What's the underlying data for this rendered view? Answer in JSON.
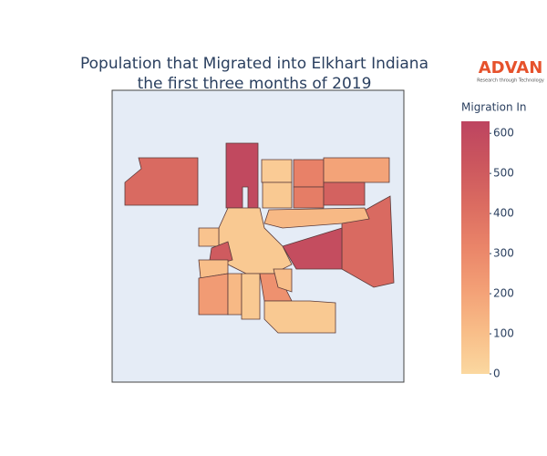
{
  "chart_data": {
    "type": "choropleth",
    "title": [
      "Population that Migrated into Elkhart Indiana",
      "the first three months of 2019"
    ],
    "colorbar_title": "Migration In",
    "colorscale": [
      "#fbd8a0",
      "#f8bd88",
      "#f3a076",
      "#ea8569",
      "#db6c61",
      "#cb565e",
      "#bd4460"
    ],
    "clim": [
      0,
      630
    ],
    "cticks": [
      0,
      100,
      200,
      300,
      400,
      500,
      600
    ],
    "values": [
      430,
      600,
      50,
      330,
      200,
      350,
      470,
      60,
      430,
      580,
      120,
      60,
      80,
      500,
      100,
      230,
      120,
      60,
      270,
      60,
      100
    ]
  },
  "logo": {
    "name": "ADVAN",
    "tagline": "Research through Technology"
  }
}
